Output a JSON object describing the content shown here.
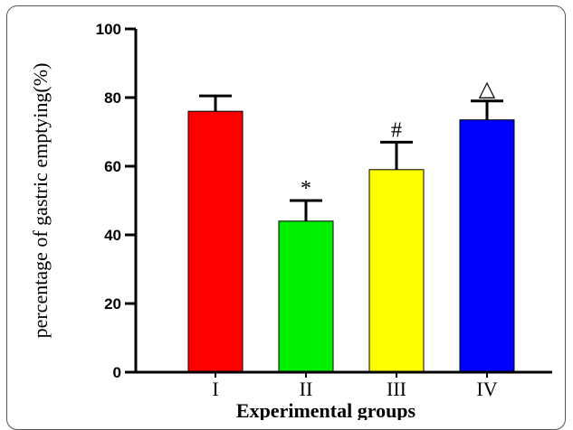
{
  "chart_data": {
    "type": "bar",
    "title": "",
    "xlabel": "Experimental groups",
    "ylabel": "percentage of  gastric emptying(%)",
    "ylim": [
      0,
      100
    ],
    "yticks": [
      "0",
      "20",
      "40",
      "60",
      "80",
      "100"
    ],
    "categories": [
      "I",
      "II",
      "III",
      "IV"
    ],
    "values": [
      76,
      44,
      59,
      73.5
    ],
    "errors": [
      4.5,
      6,
      8,
      5.5
    ],
    "annotations": [
      "",
      "*",
      "#",
      "△"
    ],
    "colors": [
      "#ff0000",
      "#00ee00",
      "#ffff00",
      "#0000ff"
    ],
    "grid": false
  }
}
